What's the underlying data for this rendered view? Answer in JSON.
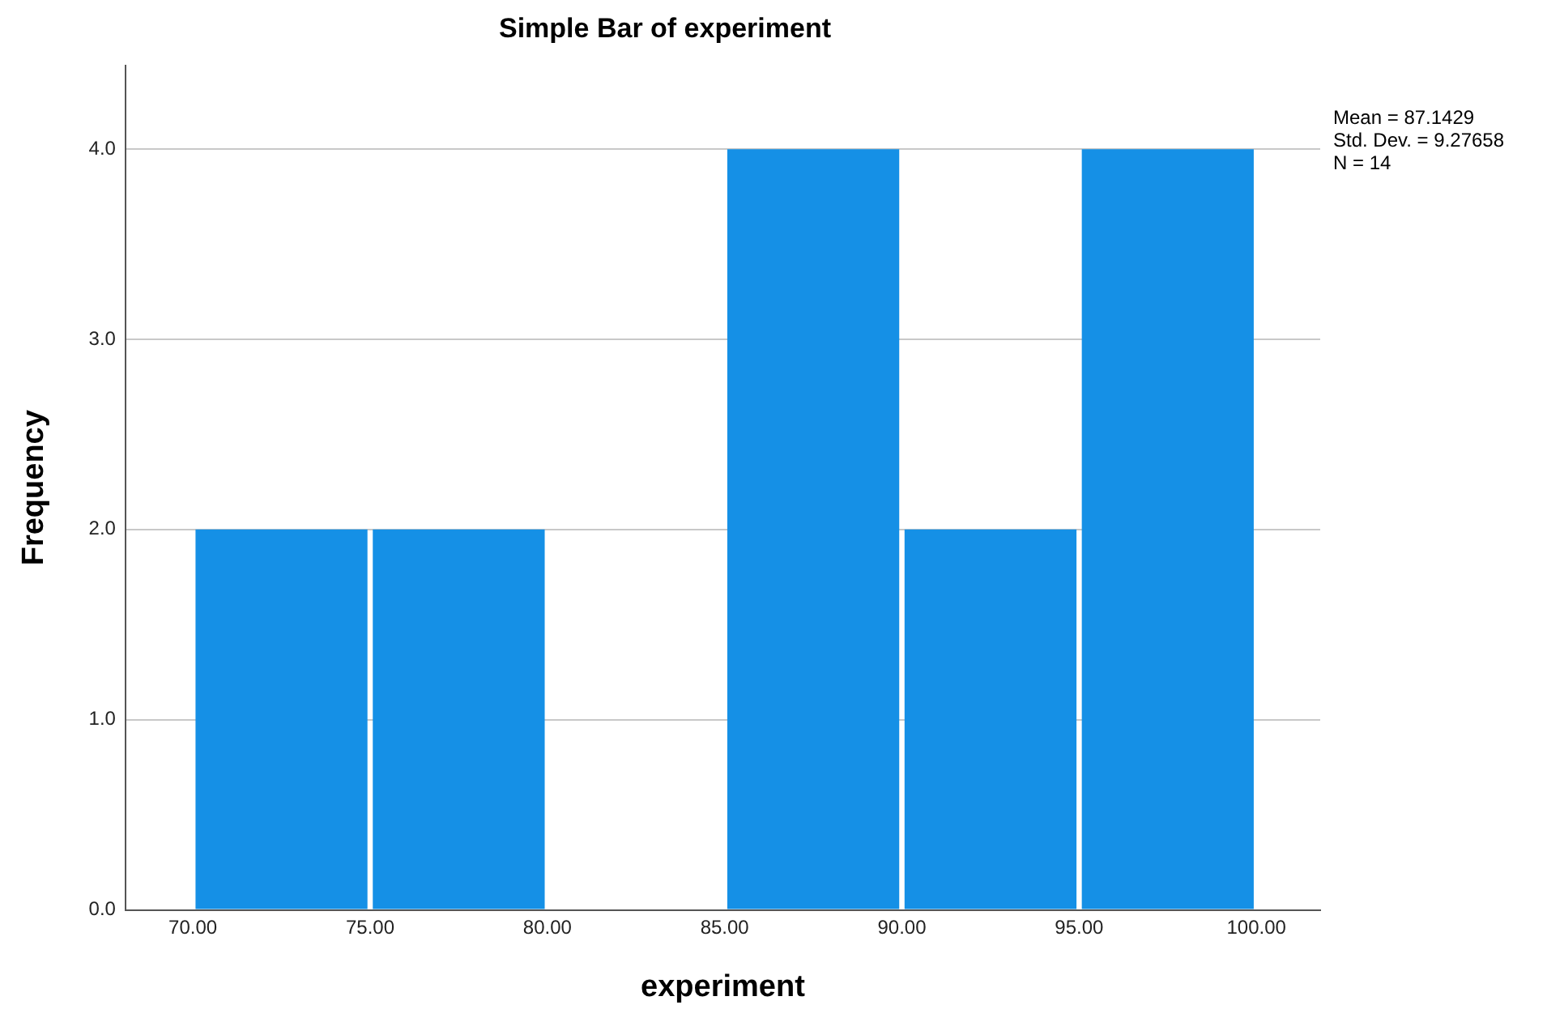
{
  "chart_data": {
    "type": "histogram",
    "title": "Simple Bar of experiment",
    "xlabel": "experiment",
    "ylabel": "Frequency",
    "bins": [
      70,
      75,
      80,
      85,
      90,
      95,
      100
    ],
    "values": [
      2,
      2,
      0,
      4,
      2,
      4
    ],
    "color": "#1590e6",
    "xlim": [
      68.1,
      101.8
    ],
    "xticks": [
      {
        "value": 70,
        "label": "70.00"
      },
      {
        "value": 75,
        "label": "75.00"
      },
      {
        "value": 80,
        "label": "80.00"
      },
      {
        "value": 85,
        "label": "85.00"
      },
      {
        "value": 90,
        "label": "90.00"
      },
      {
        "value": 95,
        "label": "95.00"
      },
      {
        "value": 100,
        "label": "100.00"
      }
    ],
    "ylim": [
      0,
      4.44
    ],
    "yticks": [
      {
        "value": 0,
        "label": "0.0"
      },
      {
        "value": 1,
        "label": "1.0"
      },
      {
        "value": 2,
        "label": "2.0"
      },
      {
        "value": 3,
        "label": "3.0"
      },
      {
        "value": 4,
        "label": "4.0"
      }
    ],
    "grid": "y",
    "annotations": [
      "Mean = 87.1429",
      "Std. Dev. = 9.27658",
      "N = 14"
    ]
  }
}
